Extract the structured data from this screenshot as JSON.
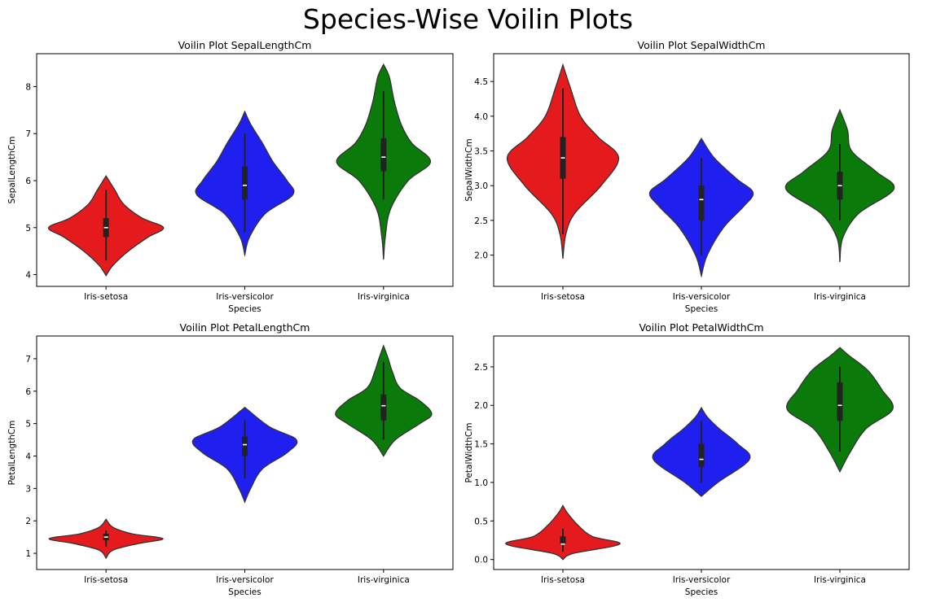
{
  "figure": {
    "title": "Species-Wise Voilin Plots"
  },
  "colors": {
    "Iris-setosa": "#e41a1c",
    "Iris-versicolor": "#1f1ff0",
    "Iris-virginica": "#0a7a0a",
    "outline": "#333333",
    "box": "#222222"
  },
  "chart_data": [
    {
      "type": "violin",
      "title": "Voilin Plot SepalLengthCm",
      "xlabel": "Species",
      "ylabel": "SepalLengthCm",
      "categories": [
        "Iris-setosa",
        "Iris-versicolor",
        "Iris-virginica"
      ],
      "ylim": [
        3.75,
        8.7
      ],
      "yticks": [
        4,
        5,
        6,
        7,
        8
      ],
      "series": [
        {
          "category": "Iris-setosa",
          "median": 5.0,
          "q1": 4.8,
          "q3": 5.2,
          "whisker_low": 4.3,
          "whisker_high": 5.8,
          "profile": [
            [
              3.98,
              0
            ],
            [
              4.2,
              0.12
            ],
            [
              4.5,
              0.38
            ],
            [
              4.8,
              0.72
            ],
            [
              5.0,
              0.98
            ],
            [
              5.2,
              0.62
            ],
            [
              5.5,
              0.3
            ],
            [
              5.8,
              0.15
            ],
            [
              6.1,
              0
            ]
          ]
        },
        {
          "category": "Iris-versicolor",
          "median": 5.9,
          "q1": 5.6,
          "q3": 6.3,
          "whisker_low": 4.9,
          "whisker_high": 7.0,
          "profile": [
            [
              4.42,
              0
            ],
            [
              4.8,
              0.08
            ],
            [
              5.3,
              0.35
            ],
            [
              5.7,
              0.82
            ],
            [
              6.0,
              0.72
            ],
            [
              6.4,
              0.48
            ],
            [
              6.8,
              0.3
            ],
            [
              7.2,
              0.1
            ],
            [
              7.47,
              0
            ]
          ]
        },
        {
          "category": "Iris-virginica",
          "median": 6.5,
          "q1": 6.2,
          "q3": 6.9,
          "whisker_low": 5.6,
          "whisker_high": 7.9,
          "profile": [
            [
              4.32,
              0
            ],
            [
              4.8,
              0.03
            ],
            [
              5.4,
              0.12
            ],
            [
              6.0,
              0.42
            ],
            [
              6.4,
              0.8
            ],
            [
              6.8,
              0.48
            ],
            [
              7.2,
              0.3
            ],
            [
              7.7,
              0.18
            ],
            [
              8.2,
              0.1
            ],
            [
              8.47,
              0
            ]
          ]
        }
      ]
    },
    {
      "type": "violin",
      "title": "Voilin Plot SepalWidthCm",
      "xlabel": "Species",
      "ylabel": "SepalWidthCm",
      "categories": [
        "Iris-setosa",
        "Iris-versicolor",
        "Iris-virginica"
      ],
      "ylim": [
        1.55,
        4.9
      ],
      "yticks": [
        2.0,
        2.5,
        3.0,
        3.5,
        4.0,
        4.5
      ],
      "series": [
        {
          "category": "Iris-setosa",
          "median": 3.4,
          "q1": 3.1,
          "q3": 3.7,
          "whisker_low": 2.3,
          "whisker_high": 4.4,
          "profile": [
            [
              1.95,
              0
            ],
            [
              2.3,
              0.05
            ],
            [
              2.6,
              0.2
            ],
            [
              3.0,
              0.65
            ],
            [
              3.4,
              0.95
            ],
            [
              3.7,
              0.6
            ],
            [
              4.0,
              0.3
            ],
            [
              4.4,
              0.13
            ],
            [
              4.74,
              0
            ]
          ]
        },
        {
          "category": "Iris-versicolor",
          "median": 2.8,
          "q1": 2.5,
          "q3": 3.0,
          "whisker_low": 2.0,
          "whisker_high": 3.4,
          "profile": [
            [
              1.7,
              0
            ],
            [
              2.0,
              0.1
            ],
            [
              2.4,
              0.38
            ],
            [
              2.7,
              0.72
            ],
            [
              2.9,
              0.88
            ],
            [
              3.1,
              0.6
            ],
            [
              3.4,
              0.22
            ],
            [
              3.68,
              0
            ]
          ]
        },
        {
          "category": "Iris-virginica",
          "median": 3.0,
          "q1": 2.8,
          "q3": 3.2,
          "whisker_low": 2.5,
          "whisker_high": 3.6,
          "profile": [
            [
              1.9,
              0
            ],
            [
              2.25,
              0.05
            ],
            [
              2.6,
              0.32
            ],
            [
              2.95,
              0.92
            ],
            [
              3.2,
              0.62
            ],
            [
              3.5,
              0.2
            ],
            [
              3.8,
              0.13
            ],
            [
              4.09,
              0
            ]
          ]
        }
      ]
    },
    {
      "type": "violin",
      "title": "Voilin Plot PetalLengthCm",
      "xlabel": "Species",
      "ylabel": "PetalLengthCm",
      "categories": [
        "Iris-setosa",
        "Iris-versicolor",
        "Iris-virginica"
      ],
      "ylim": [
        0.5,
        7.7
      ],
      "yticks": [
        1,
        2,
        3,
        4,
        5,
        6,
        7
      ],
      "series": [
        {
          "category": "Iris-setosa",
          "median": 1.5,
          "q1": 1.4,
          "q3": 1.6,
          "whisker_low": 1.2,
          "whisker_high": 1.7,
          "profile": [
            [
              0.85,
              0
            ],
            [
              1.1,
              0.12
            ],
            [
              1.3,
              0.55
            ],
            [
              1.45,
              0.97
            ],
            [
              1.6,
              0.45
            ],
            [
              1.8,
              0.12
            ],
            [
              2.05,
              0
            ]
          ]
        },
        {
          "category": "Iris-versicolor",
          "median": 4.35,
          "q1": 4.0,
          "q3": 4.6,
          "whisker_low": 3.3,
          "whisker_high": 5.1,
          "profile": [
            [
              2.58,
              0
            ],
            [
              3.0,
              0.1
            ],
            [
              3.6,
              0.3
            ],
            [
              4.1,
              0.72
            ],
            [
              4.5,
              0.88
            ],
            [
              4.9,
              0.42
            ],
            [
              5.5,
              0
            ]
          ]
        },
        {
          "category": "Iris-virginica",
          "median": 5.55,
          "q1": 5.1,
          "q3": 5.9,
          "whisker_low": 4.5,
          "whisker_high": 6.9,
          "profile": [
            [
              4.0,
              0
            ],
            [
              4.5,
              0.2
            ],
            [
              5.0,
              0.62
            ],
            [
              5.3,
              0.82
            ],
            [
              5.7,
              0.62
            ],
            [
              6.1,
              0.28
            ],
            [
              6.6,
              0.15
            ],
            [
              7.0,
              0.08
            ],
            [
              7.4,
              0
            ]
          ]
        }
      ]
    },
    {
      "type": "violin",
      "title": "Voilin Plot PetalWidthCm",
      "xlabel": "Species",
      "ylabel": "PetalWidthCm",
      "categories": [
        "Iris-setosa",
        "Iris-versicolor",
        "Iris-virginica"
      ],
      "ylim": [
        -0.13,
        2.9
      ],
      "yticks": [
        0.0,
        0.5,
        1.0,
        1.5,
        2.0,
        2.5
      ],
      "series": [
        {
          "category": "Iris-setosa",
          "median": 0.2,
          "q1": 0.2,
          "q3": 0.3,
          "whisker_low": 0.1,
          "whisker_high": 0.4,
          "profile": [
            [
              0.0,
              0
            ],
            [
              0.08,
              0.18
            ],
            [
              0.2,
              0.97
            ],
            [
              0.3,
              0.5
            ],
            [
              0.45,
              0.25
            ],
            [
              0.6,
              0.08
            ],
            [
              0.7,
              0
            ]
          ]
        },
        {
          "category": "Iris-versicolor",
          "median": 1.3,
          "q1": 1.2,
          "q3": 1.5,
          "whisker_low": 1.0,
          "whisker_high": 1.8,
          "profile": [
            [
              0.82,
              0
            ],
            [
              1.0,
              0.28
            ],
            [
              1.3,
              0.82
            ],
            [
              1.5,
              0.62
            ],
            [
              1.7,
              0.3
            ],
            [
              1.85,
              0.1
            ],
            [
              1.97,
              0
            ]
          ]
        },
        {
          "category": "Iris-virginica",
          "median": 2.0,
          "q1": 1.8,
          "q3": 2.3,
          "whisker_low": 1.4,
          "whisker_high": 2.5,
          "profile": [
            [
              1.14,
              0
            ],
            [
              1.4,
              0.18
            ],
            [
              1.7,
              0.45
            ],
            [
              1.95,
              0.9
            ],
            [
              2.2,
              0.72
            ],
            [
              2.45,
              0.48
            ],
            [
              2.65,
              0.15
            ],
            [
              2.75,
              0
            ]
          ]
        }
      ]
    }
  ]
}
